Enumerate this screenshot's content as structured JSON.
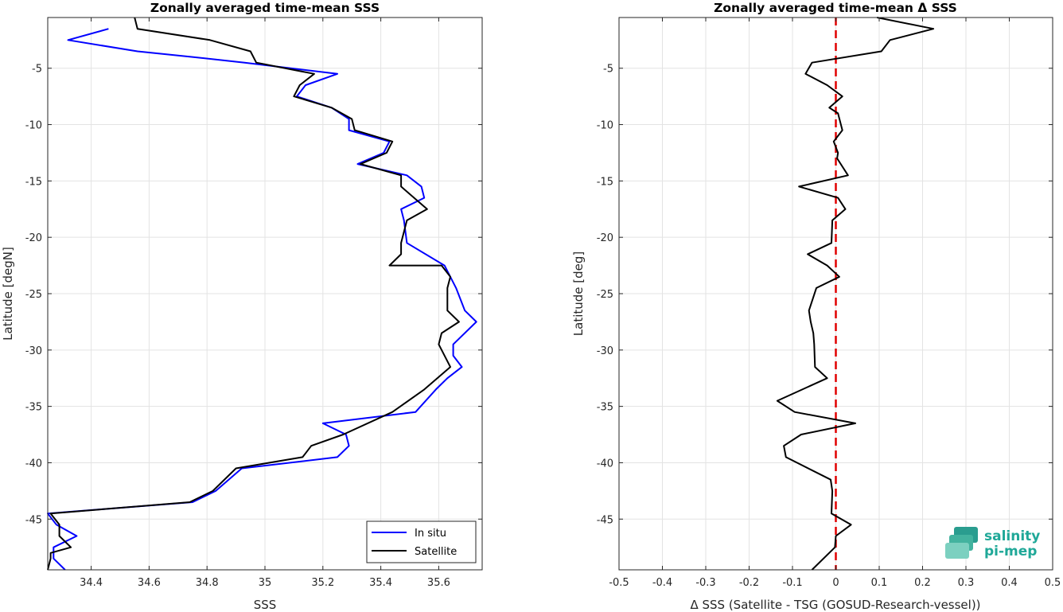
{
  "chart_data": [
    {
      "type": "line",
      "title": "Zonally averaged time-mean SSS",
      "xlabel": "SSS",
      "ylabel": "Latitude [degN]",
      "xlim": [
        34.25,
        35.75
      ],
      "ylim": [
        -49.5,
        -0.5
      ],
      "xticks": [
        34.4,
        34.6,
        34.8,
        35,
        35.2,
        35.4,
        35.6
      ],
      "xtick_labels": [
        "34.4",
        "34.6",
        "34.8",
        "35",
        "35.2",
        "35.4",
        "35.6"
      ],
      "yticks": [
        -5,
        -10,
        -15,
        -20,
        -25,
        -30,
        -35,
        -40,
        -45
      ],
      "ytick_labels": [
        "-5",
        "-10",
        "-15",
        "-20",
        "-25",
        "-30",
        "-35",
        "-40",
        "-45"
      ],
      "grid": true,
      "legend": {
        "location": "bottom-right"
      },
      "series": [
        {
          "name": "In situ",
          "color": "#0000ff",
          "x": [
            34.46,
            34.32,
            34.56,
            34.75,
            34.93,
            35.25,
            35.14,
            35.11,
            35.23,
            35.29,
            35.29,
            35.43,
            35.41,
            35.32,
            35.49,
            35.54,
            35.55,
            35.47,
            35.48,
            35.49,
            35.62,
            35.66,
            35.69,
            35.73,
            35.65,
            35.65,
            35.68,
            35.63,
            35.59,
            35.52,
            35.2,
            35.28,
            35.29,
            35.25,
            34.92,
            34.83,
            34.75,
            34.25,
            34.28,
            34.35,
            34.27,
            34.27,
            34.31
          ],
          "y": [
            -1.5,
            -2.5,
            -3.5,
            -4,
            -4.5,
            -5.5,
            -6.5,
            -7.5,
            -8.5,
            -9.5,
            -10.5,
            -11.5,
            -12.5,
            -13.5,
            -14.5,
            -15.5,
            -16.5,
            -17.5,
            -18.5,
            -20.5,
            -22.5,
            -24.5,
            -26.5,
            -27.5,
            -29.5,
            -30.5,
            -31.5,
            -32.5,
            -33.5,
            -35.5,
            -36.5,
            -37.5,
            -38.5,
            -39.5,
            -40.5,
            -42.5,
            -43.5,
            -44.5,
            -45.5,
            -46.5,
            -47.5,
            -48.5,
            -49.5
          ]
        },
        {
          "name": "Satellite",
          "color": "#000000",
          "x": [
            34.55,
            34.56,
            34.81,
            34.95,
            34.97,
            35.17,
            35.12,
            35.1,
            35.23,
            35.3,
            35.31,
            35.44,
            35.42,
            35.33,
            35.47,
            35.47,
            35.56,
            35.49,
            35.47,
            35.47,
            35.43,
            35.61,
            35.64,
            35.63,
            35.63,
            35.67,
            35.61,
            35.6,
            35.64,
            35.55,
            35.44,
            35.27,
            35.16,
            35.13,
            34.9,
            34.82,
            34.74,
            34.26,
            34.29,
            34.29,
            34.33,
            34.26,
            34.26,
            34.25
          ],
          "y": [
            -0.5,
            -1.5,
            -2.5,
            -3.5,
            -4.5,
            -5.5,
            -6.5,
            -7.5,
            -8.5,
            -9.5,
            -10.5,
            -11.5,
            -12.5,
            -13.5,
            -14.5,
            -15.5,
            -17.5,
            -18.5,
            -20.5,
            -21.5,
            -22.5,
            -22.5,
            -23.5,
            -24.5,
            -26.5,
            -27.5,
            -28.5,
            -29.5,
            -31.5,
            -33.5,
            -35.5,
            -37.5,
            -38.5,
            -39.5,
            -40.5,
            -42.5,
            -43.5,
            -44.5,
            -45.5,
            -46.5,
            -47.5,
            -48,
            -48.5,
            -49.5
          ]
        }
      ]
    },
    {
      "type": "line",
      "title": "Zonally averaged time-mean Δ SSS",
      "xlabel": "Δ SSS (Satellite - TSG (GOSUD-Research-vessel))",
      "ylabel": "Latitude [deg]",
      "xlim": [
        -0.5,
        0.5
      ],
      "ylim": [
        -49.5,
        -0.5
      ],
      "xticks": [
        -0.5,
        -0.4,
        -0.3,
        -0.2,
        -0.1,
        0,
        0.1,
        0.2,
        0.3,
        0.4,
        0.5
      ],
      "xtick_labels": [
        "-0.5",
        "-0.4",
        "-0.3",
        "-0.2",
        "-0.1",
        "0",
        "0.1",
        "0.2",
        "0.3",
        "0.4",
        "0.5"
      ],
      "yticks": [
        -5,
        -10,
        -15,
        -20,
        -25,
        -30,
        -35,
        -40,
        -45
      ],
      "ytick_labels": [
        "-5",
        "-10",
        "-15",
        "-20",
        "-25",
        "-30",
        "-35",
        "-40",
        "-45"
      ],
      "grid": true,
      "reference_line": {
        "x": 0,
        "color": "#e00000",
        "style": "dashed"
      },
      "series": [
        {
          "name": "",
          "color": "#000000",
          "x": [
            0.095,
            0.225,
            0.125,
            0.105,
            -0.055,
            -0.07,
            -0.02,
            0.015,
            -0.015,
            0.005,
            0.015,
            -0.005,
            0.005,
            0.003,
            0.028,
            -0.085,
            0.005,
            0.022,
            -0.008,
            -0.01,
            -0.065,
            -0.02,
            0.008,
            -0.045,
            -0.062,
            -0.058,
            -0.052,
            -0.05,
            -0.048,
            -0.02,
            -0.135,
            -0.095,
            0.045,
            -0.08,
            -0.12,
            -0.115,
            -0.012,
            -0.008,
            -0.01,
            0.035,
            0.0,
            -0.002,
            -0.055
          ],
          "y": [
            -0.5,
            -1.5,
            -2.5,
            -3.5,
            -4.5,
            -5.5,
            -6.5,
            -7.5,
            -8.5,
            -9,
            -10.5,
            -11.5,
            -12.5,
            -13,
            -14.5,
            -15.5,
            -16.5,
            -17.5,
            -18.5,
            -20.5,
            -21.5,
            -22.5,
            -23.5,
            -24.5,
            -26.5,
            -27.5,
            -28.5,
            -29.5,
            -31.5,
            -32.5,
            -34.5,
            -35.5,
            -36.5,
            -37.5,
            -38.5,
            -39.5,
            -41.5,
            -42.5,
            -44.5,
            -45.5,
            -46.5,
            -47.5,
            -49.5
          ]
        }
      ]
    }
  ],
  "legend": {
    "items": [
      "In situ",
      "Satellite"
    ]
  },
  "logo": {
    "line1": "salinity",
    "line2": "pi-mep"
  }
}
